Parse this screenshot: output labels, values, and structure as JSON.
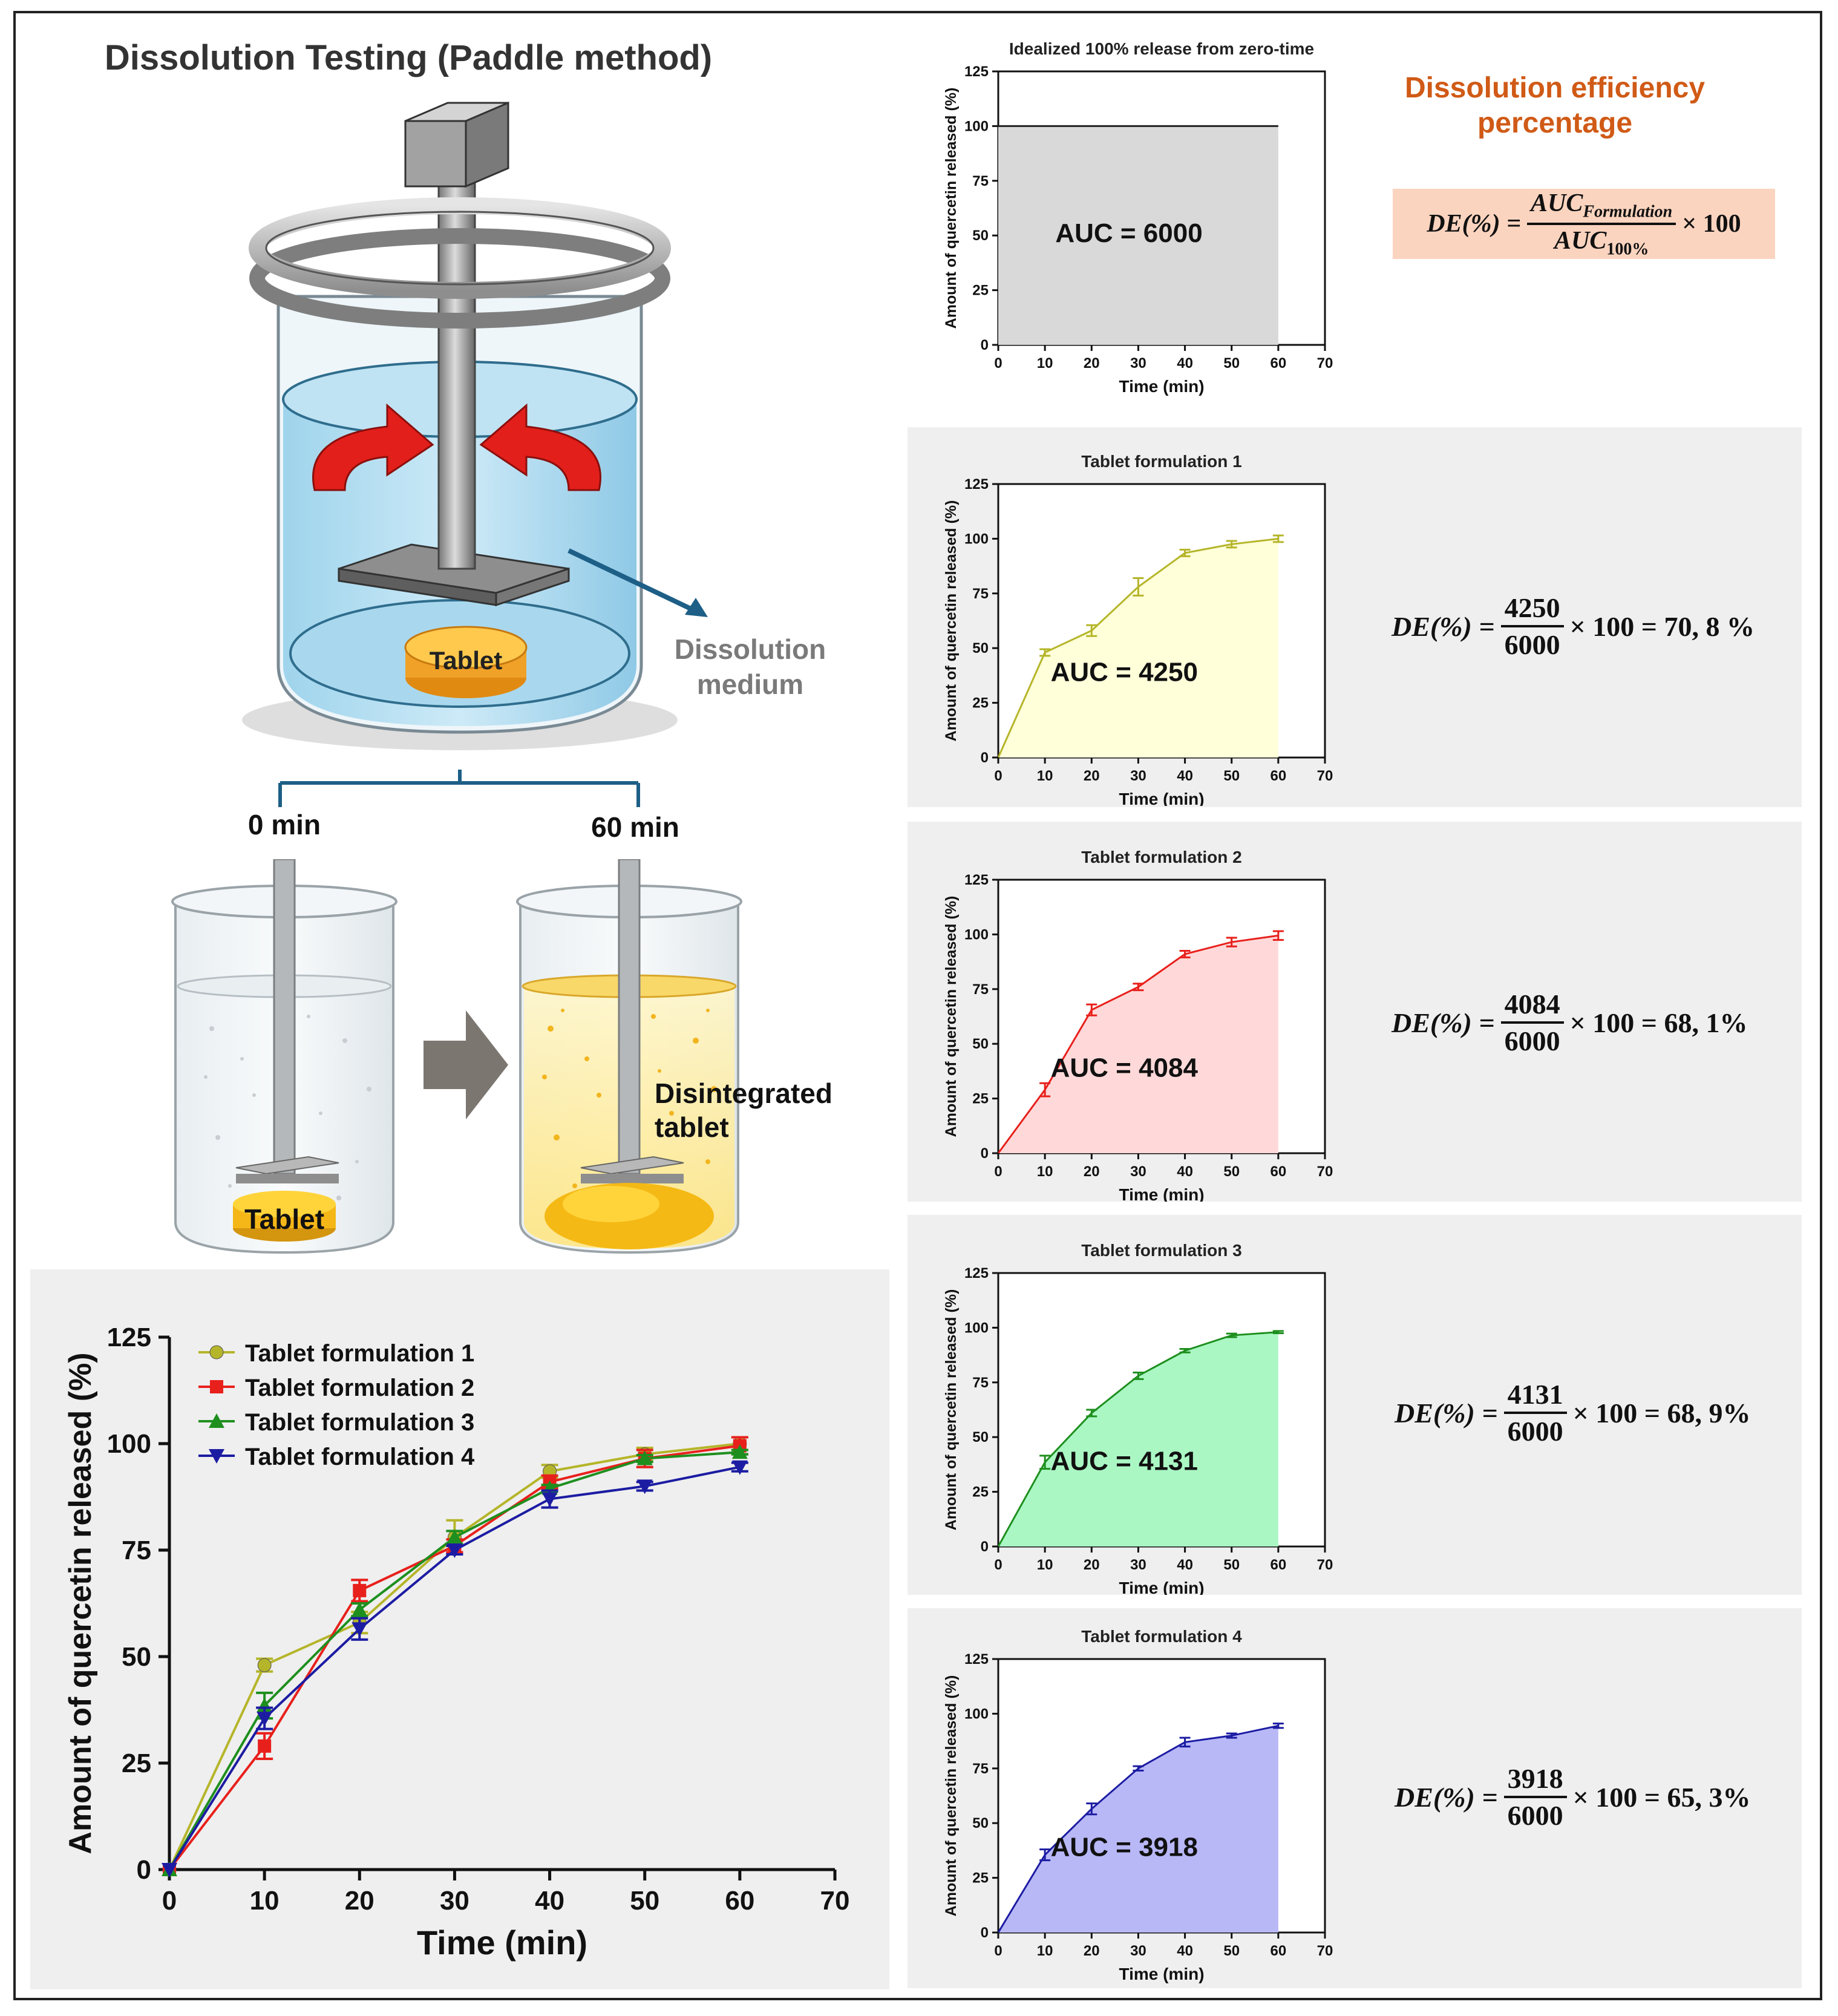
{
  "scheme": {
    "title": "Dissolution Testing (Paddle method)",
    "medium_label_1": "Dissolution",
    "medium_label_2": "medium",
    "tablet_label": "Tablet",
    "time_start": "0 min",
    "time_end": "60 min",
    "tablet_label_2": "Tablet",
    "disintegrated_1": "Disintegrated",
    "disintegrated_2": "tablet"
  },
  "de_box": {
    "title_1": "Dissolution efficiency",
    "title_2": "percentage",
    "lhs": "DE(%) =",
    "num": "AUC",
    "num_sub": "Formulation",
    "den": "AUC",
    "den_sub": "100%",
    "tail": "× 100"
  },
  "colors": {
    "f1": "#b5b52a",
    "f1_fill": "#ffffd9",
    "f2": "#e8201c",
    "f2_fill": "#ffd9d9",
    "f3": "#1e8f1e",
    "f3_fill": "#aaf7c4",
    "f4": "#1c1ca3",
    "f4_fill": "#b8b8f7",
    "ideal_fill": "#d9d9d9",
    "accent": "#d05a16"
  },
  "equations": [
    {
      "lhs": "DE(%) =",
      "num": "4250",
      "den": "6000",
      "rhs": "× 100 = 70, 8 %"
    },
    {
      "lhs": "DE(%) =",
      "num": "4084",
      "den": "6000",
      "rhs": "× 100 = 68, 1%"
    },
    {
      "lhs": "DE(%) =",
      "num": "4131",
      "den": "6000",
      "rhs": "× 100 = 68, 9%"
    },
    {
      "lhs": "DE(%) =",
      "num": "3918",
      "den": "6000",
      "rhs": "× 100 = 65, 3%"
    }
  ],
  "chart_data": [
    {
      "id": "ideal",
      "type": "area",
      "title": "Idealized 100% release from zero-time",
      "xlabel": "Time (min)",
      "ylabel": "Amount of quercetin released (%)",
      "xlim": [
        0,
        70
      ],
      "ylim": [
        0,
        125
      ],
      "xticks": [
        0,
        10,
        20,
        30,
        40,
        50,
        60,
        70
      ],
      "yticks": [
        0,
        25,
        50,
        75,
        100,
        125
      ],
      "x": [
        0,
        60
      ],
      "values": [
        100,
        100
      ],
      "errors": [
        0,
        0
      ],
      "annotation": "AUC = 6000",
      "series_color": "#222222",
      "fill_color": "#d9d9d9"
    },
    {
      "id": "f1",
      "type": "area",
      "title": "Tablet formulation 1",
      "xlabel": "Time (min)",
      "ylabel": "Amount of quercetin released (%)",
      "xlim": [
        0,
        70
      ],
      "ylim": [
        0,
        125
      ],
      "xticks": [
        0,
        10,
        20,
        30,
        40,
        50,
        60,
        70
      ],
      "yticks": [
        0,
        25,
        50,
        75,
        100,
        125
      ],
      "x": [
        0,
        10,
        20,
        30,
        40,
        50,
        60
      ],
      "values": [
        0,
        48,
        58,
        78,
        93.5,
        97.5,
        100
      ],
      "errors": [
        0,
        1.5,
        2.5,
        4,
        1.5,
        1.5,
        1.5
      ],
      "annotation": "AUC = 4250",
      "series_color": "#b5b52a",
      "fill_color": "#ffffd9"
    },
    {
      "id": "f2",
      "type": "area",
      "title": "Tablet formulation 2",
      "xlabel": "Time (min)",
      "ylabel": "Amount of quercetin released (%)",
      "xlim": [
        0,
        70
      ],
      "ylim": [
        0,
        125
      ],
      "xticks": [
        0,
        10,
        20,
        30,
        40,
        50,
        60,
        70
      ],
      "yticks": [
        0,
        25,
        50,
        75,
        100,
        125
      ],
      "x": [
        0,
        10,
        20,
        30,
        40,
        50,
        60
      ],
      "values": [
        0,
        29,
        65.5,
        76,
        91,
        96.5,
        99.5
      ],
      "errors": [
        0,
        3,
        2.5,
        1.5,
        1.5,
        2,
        2
      ],
      "annotation": "AUC = 4084",
      "series_color": "#e8201c",
      "fill_color": "#ffd9d9"
    },
    {
      "id": "f3",
      "type": "area",
      "title": "Tablet formulation 3",
      "xlabel": "Time (min)",
      "ylabel": "Amount of quercetin released (%)",
      "xlim": [
        0,
        70
      ],
      "ylim": [
        0,
        125
      ],
      "xticks": [
        0,
        10,
        20,
        30,
        40,
        50,
        60,
        70
      ],
      "yticks": [
        0,
        25,
        50,
        75,
        100,
        125
      ],
      "x": [
        0,
        10,
        20,
        30,
        40,
        50,
        60
      ],
      "values": [
        0,
        38.5,
        61,
        78,
        89.5,
        96.5,
        98
      ],
      "errors": [
        0,
        3,
        1.5,
        1.5,
        0.8,
        0.8,
        0.5
      ],
      "annotation": "AUC = 4131",
      "series_color": "#1e8f1e",
      "fill_color": "#aaf7c4"
    },
    {
      "id": "f4",
      "type": "area",
      "title": "Tablet formulation 4",
      "xlabel": "Time (min)",
      "ylabel": "Amount of quercetin released (%)",
      "xlim": [
        0,
        70
      ],
      "ylim": [
        0,
        125
      ],
      "xticks": [
        0,
        10,
        20,
        30,
        40,
        50,
        60,
        70
      ],
      "yticks": [
        0,
        25,
        50,
        75,
        100,
        125
      ],
      "x": [
        0,
        10,
        20,
        30,
        40,
        50,
        60
      ],
      "values": [
        0,
        35.5,
        56.5,
        75,
        87,
        90,
        94.5
      ],
      "errors": [
        0,
        2.5,
        2.5,
        1,
        2,
        1,
        1
      ],
      "annotation": "AUC = 3918",
      "series_color": "#1c1ca3",
      "fill_color": "#b8b8f7"
    },
    {
      "id": "combined",
      "type": "line",
      "title": "",
      "xlabel": "Time (min)",
      "ylabel": "Amount of quercetin released (%)",
      "xlim": [
        0,
        70
      ],
      "ylim": [
        0,
        125
      ],
      "xticks": [
        0,
        10,
        20,
        30,
        40,
        50,
        60,
        70
      ],
      "yticks": [
        0,
        25,
        50,
        75,
        100,
        125
      ],
      "legend": "top-left",
      "x": [
        0,
        10,
        20,
        30,
        40,
        50,
        60
      ],
      "series": [
        {
          "name": "Tablet formulation 1",
          "marker": "circle",
          "color": "#b5b52a",
          "values": [
            0,
            48,
            58,
            78,
            93.5,
            97.5,
            100
          ],
          "errors": [
            0,
            1.5,
            2.5,
            4,
            1.5,
            1.5,
            1.5
          ]
        },
        {
          "name": "Tablet formulation 2",
          "marker": "square",
          "color": "#e8201c",
          "values": [
            0,
            29,
            65.5,
            76,
            91,
            96.5,
            99.5
          ],
          "errors": [
            0,
            3,
            2.5,
            1.5,
            1.5,
            2,
            2
          ]
        },
        {
          "name": "Tablet formulation 3",
          "marker": "triangle-up",
          "color": "#1e8f1e",
          "values": [
            0,
            38.5,
            61,
            78,
            89.5,
            96.5,
            98
          ],
          "errors": [
            0,
            3,
            1.5,
            1.5,
            0.8,
            0.8,
            0.5
          ]
        },
        {
          "name": "Tablet formulation 4",
          "marker": "triangle-down",
          "color": "#1c1ca3",
          "values": [
            0,
            35.5,
            56.5,
            75,
            87,
            90,
            94.5
          ],
          "errors": [
            0,
            2.5,
            2.5,
            1,
            2,
            1,
            1
          ]
        }
      ]
    }
  ]
}
